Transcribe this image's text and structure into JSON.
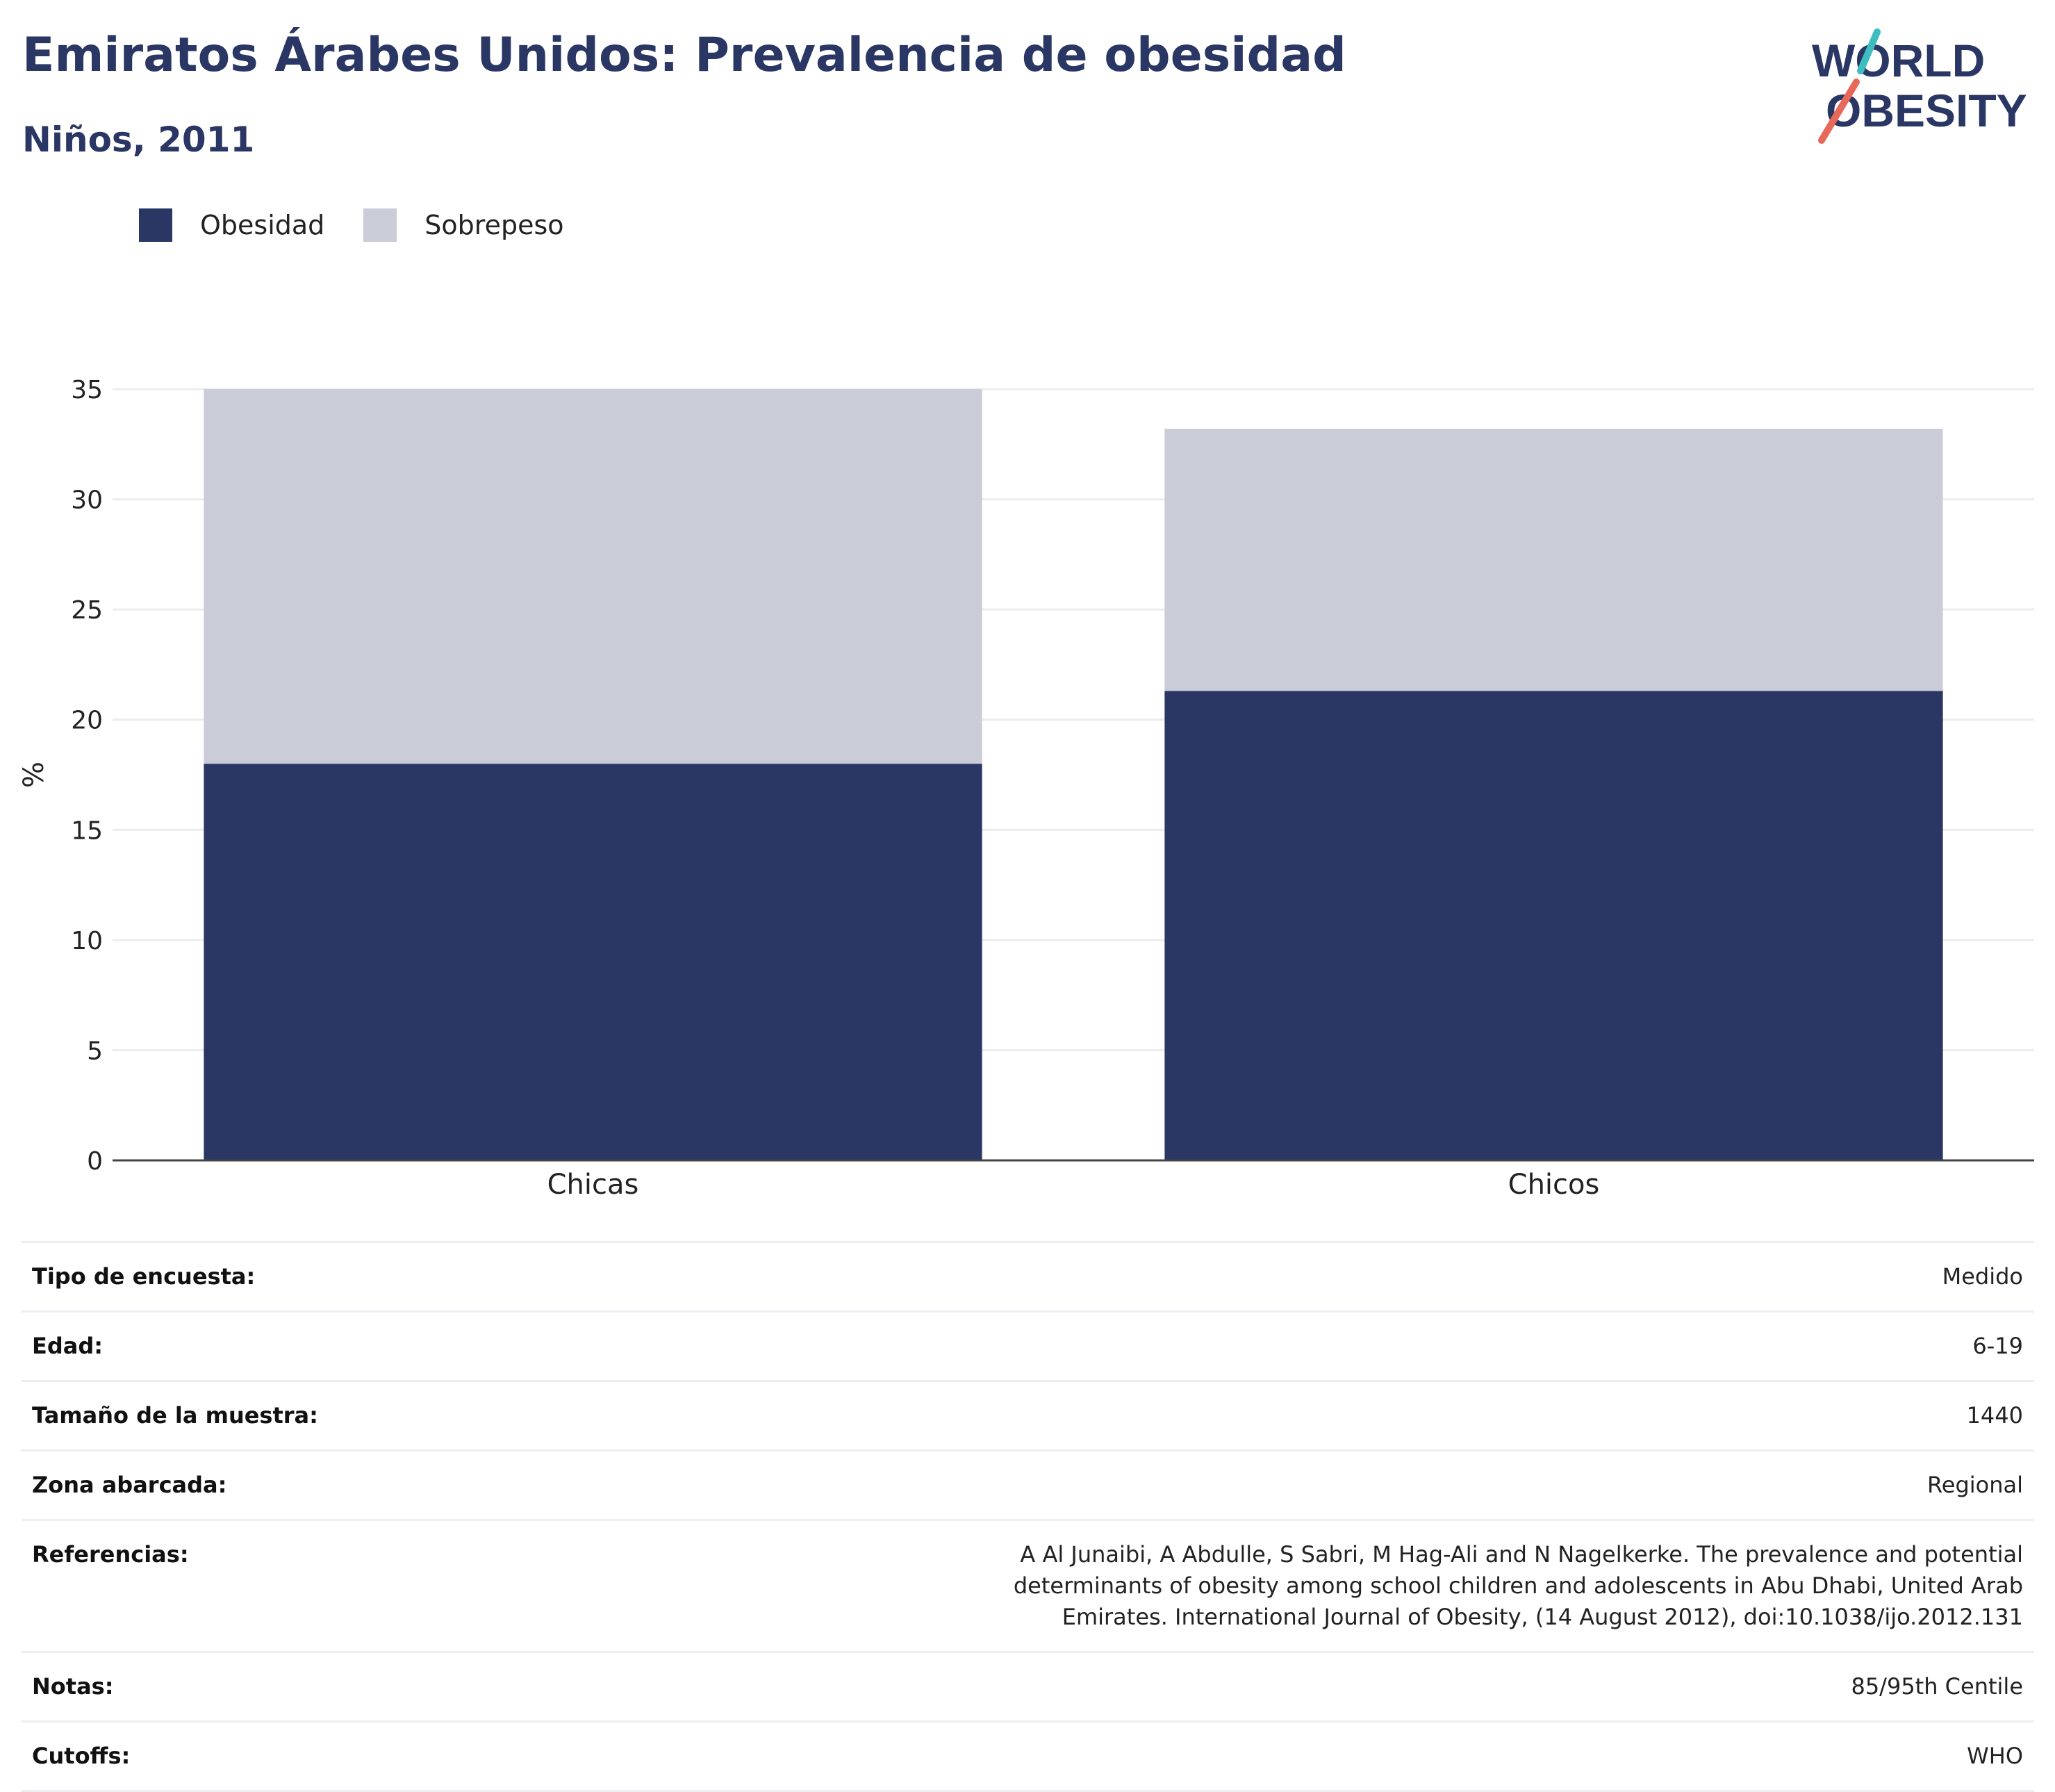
{
  "header": {
    "title": "Emiratos Árabes Unidos: Prevalencia de obesidad",
    "subtitle": "Niños, 2011"
  },
  "logo": {
    "line1": "WORLD",
    "line2": "OBESITY"
  },
  "legend": [
    {
      "label": "Obesidad",
      "color": "#2a3663"
    },
    {
      "label": "Sobrepeso",
      "color": "#cacdd8"
    }
  ],
  "chart_data": {
    "type": "bar",
    "stacked": true,
    "categories": [
      "Chicas",
      "Chicos"
    ],
    "series": [
      {
        "name": "Obesidad",
        "values": [
          18.0,
          21.3
        ],
        "color": "#2a3663"
      },
      {
        "name": "Sobrepeso",
        "values": [
          17.0,
          11.9
        ],
        "color": "#cacdd8"
      }
    ],
    "ylabel": "%",
    "ylim": [
      0,
      35
    ],
    "yticks": [
      0,
      5,
      10,
      15,
      20,
      25,
      30,
      35
    ],
    "grid": true,
    "legend_position": "top-left"
  },
  "info": [
    {
      "key": "Tipo de encuesta:",
      "value": "Medido"
    },
    {
      "key": "Edad:",
      "value": "6-19"
    },
    {
      "key": "Tamaño de la muestra:",
      "value": "1440"
    },
    {
      "key": "Zona abarcada:",
      "value": "Regional"
    },
    {
      "key": "Referencias:",
      "value": "A Al Junaibi, A Abdulle, S Sabri, M Hag-Ali and N Nagelkerke. The prevalence and potential determinants of obesity among school children and adolescents in Abu Dhabi, United Arab Emirates. International Journal of Obesity, (14 August 2012), doi:10.1038/ijo.2012.131"
    },
    {
      "key": "Notas:",
      "value": "85/95th Centile"
    },
    {
      "key": "Cutoffs:",
      "value": "WHO"
    }
  ]
}
